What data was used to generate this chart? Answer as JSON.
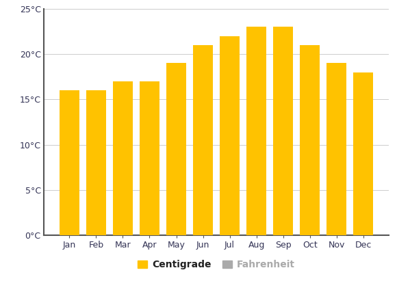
{
  "months": [
    "Jan",
    "Feb",
    "Mar",
    "Apr",
    "May",
    "Jun",
    "Jul",
    "Aug",
    "Sep",
    "Oct",
    "Nov",
    "Dec"
  ],
  "centigrade": [
    16,
    16,
    17,
    17,
    19,
    21,
    22,
    23,
    23,
    21,
    19,
    18
  ],
  "bar_color": "#FFC200",
  "legend_gray": "#AAAAAA",
  "background_color": "#FFFFFF",
  "plot_bg_color": "#FFFFFF",
  "grid_color": "#CCCCCC",
  "spine_color": "#555555",
  "tick_label_color": "#333355",
  "ylim": [
    0,
    25
  ],
  "yticks": [
    0,
    5,
    10,
    15,
    20,
    25
  ],
  "ytick_labels": [
    "0°C",
    "5°C",
    "10°C",
    "15°C",
    "20°C",
    "25°C"
  ],
  "legend_centigrade_label": "Centigrade",
  "legend_fahrenheit_label": "Fahrenheit",
  "bar_width": 0.75
}
